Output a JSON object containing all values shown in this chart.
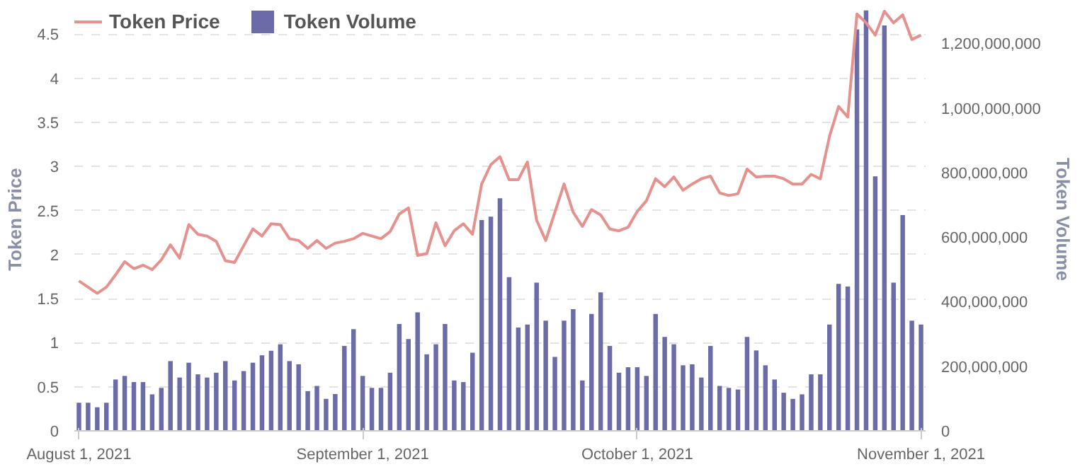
{
  "chart_data": {
    "type": "bar",
    "ylabel": "Token Price",
    "y2label": "Token Volume",
    "legend": "top left",
    "grid": "y",
    "xlim": [
      "2021-07-31T12:00",
      "2021-11-01T12:00"
    ],
    "xticks": [
      {
        "value": "2021-08-01",
        "label": "August 1, 2021"
      },
      {
        "value": "2021-09-01",
        "label": "September 1, 2021"
      },
      {
        "value": "2021-10-01",
        "label": "October 1, 2021"
      },
      {
        "value": "2021-11-01",
        "label": "November 1, 2021"
      }
    ],
    "ylim": [
      0,
      4.8
    ],
    "yticks": [
      0,
      0.5,
      1,
      1.5,
      2,
      2.5,
      3,
      3.5,
      4,
      4.5
    ],
    "y2lim": [
      0,
      1310000000
    ],
    "y2ticks": [
      {
        "value": 0,
        "label": "0"
      },
      {
        "value": 200000000,
        "label": "200,000,000"
      },
      {
        "value": 400000000,
        "label": "400,000,000"
      },
      {
        "value": 600000000,
        "label": "600,000,000"
      },
      {
        "value": 800000000,
        "label": "800,000,000"
      },
      {
        "value": 1000000000,
        "label": "1,000,000,000"
      },
      {
        "value": 1200000000,
        "label": "1,200,000,000"
      }
    ],
    "x": [
      "2021-08-01",
      "2021-08-02",
      "2021-08-03",
      "2021-08-04",
      "2021-08-05",
      "2021-08-06",
      "2021-08-07",
      "2021-08-08",
      "2021-08-09",
      "2021-08-10",
      "2021-08-11",
      "2021-08-12",
      "2021-08-13",
      "2021-08-14",
      "2021-08-15",
      "2021-08-16",
      "2021-08-17",
      "2021-08-18",
      "2021-08-19",
      "2021-08-20",
      "2021-08-21",
      "2021-08-22",
      "2021-08-23",
      "2021-08-24",
      "2021-08-25",
      "2021-08-26",
      "2021-08-27",
      "2021-08-28",
      "2021-08-29",
      "2021-08-30",
      "2021-08-31",
      "2021-09-01",
      "2021-09-02",
      "2021-09-03",
      "2021-09-04",
      "2021-09-05",
      "2021-09-06",
      "2021-09-07",
      "2021-09-08",
      "2021-09-09",
      "2021-09-10",
      "2021-09-11",
      "2021-09-12",
      "2021-09-13",
      "2021-09-14",
      "2021-09-15",
      "2021-09-16",
      "2021-09-17",
      "2021-09-18",
      "2021-09-19",
      "2021-09-20",
      "2021-09-21",
      "2021-09-22",
      "2021-09-23",
      "2021-09-24",
      "2021-09-25",
      "2021-09-26",
      "2021-09-27",
      "2021-09-28",
      "2021-09-29",
      "2021-09-30",
      "2021-10-01",
      "2021-10-02",
      "2021-10-03",
      "2021-10-04",
      "2021-10-05",
      "2021-10-06",
      "2021-10-07",
      "2021-10-08",
      "2021-10-09",
      "2021-10-10",
      "2021-10-11",
      "2021-10-12",
      "2021-10-13",
      "2021-10-14",
      "2021-10-15",
      "2021-10-16",
      "2021-10-17",
      "2021-10-18",
      "2021-10-19",
      "2021-10-20",
      "2021-10-21",
      "2021-10-22",
      "2021-10-23",
      "2021-10-24",
      "2021-10-25",
      "2021-10-26",
      "2021-10-27",
      "2021-10-28",
      "2021-10-29",
      "2021-10-30",
      "2021-10-31",
      "2021-11-01"
    ],
    "series": [
      {
        "name": "Token Price",
        "type": "line",
        "color": "#e5918e",
        "values": [
          1.7,
          1.63,
          1.56,
          1.63,
          1.77,
          1.92,
          1.84,
          1.88,
          1.83,
          1.94,
          2.11,
          1.96,
          2.34,
          2.23,
          2.21,
          2.15,
          1.93,
          1.91,
          2.1,
          2.29,
          2.21,
          2.35,
          2.34,
          2.18,
          2.16,
          2.07,
          2.16,
          2.07,
          2.13,
          2.15,
          2.18,
          2.24,
          2.21,
          2.18,
          2.26,
          2.46,
          2.53,
          1.99,
          2.01,
          2.36,
          2.1,
          2.27,
          2.35,
          2.23,
          2.8,
          3.02,
          3.11,
          2.85,
          2.85,
          3.05,
          2.39,
          2.16,
          2.48,
          2.8,
          2.48,
          2.32,
          2.51,
          2.45,
          2.29,
          2.27,
          2.31,
          2.49,
          2.61,
          2.86,
          2.77,
          2.88,
          2.73,
          2.8,
          2.86,
          2.89,
          2.7,
          2.67,
          2.69,
          2.97,
          2.88,
          2.89,
          2.89,
          2.86,
          2.8,
          2.8,
          2.91,
          2.86,
          3.34,
          3.68,
          3.56,
          4.73,
          4.63,
          4.49,
          4.76,
          4.63,
          4.72,
          4.44,
          4.49
        ]
      },
      {
        "name": "Token Volume",
        "axis": "y2",
        "color": "#6b6ba8",
        "values": [
          87000000,
          87000000,
          73000000,
          87000000,
          159000000,
          170000000,
          151000000,
          151000000,
          113000000,
          133000000,
          216000000,
          165000000,
          211000000,
          175000000,
          165000000,
          180000000,
          216000000,
          156000000,
          185000000,
          211000000,
          234000000,
          248000000,
          268000000,
          216000000,
          206000000,
          123000000,
          139000000,
          99000000,
          114000000,
          263000000,
          315000000,
          170000000,
          133000000,
          133000000,
          180000000,
          331000000,
          284000000,
          367000000,
          237000000,
          268000000,
          331000000,
          156000000,
          151000000,
          242000000,
          653000000,
          663000000,
          720000000,
          476000000,
          320000000,
          329000000,
          459000000,
          341000000,
          229000000,
          341000000,
          377000000,
          156000000,
          362000000,
          429000000,
          263000000,
          180000000,
          197000000,
          197000000,
          170000000,
          362000000,
          291000000,
          268000000,
          203000000,
          206000000,
          165000000,
          263000000,
          139000000,
          133000000,
          128000000,
          291000000,
          249000000,
          203000000,
          159000000,
          118000000,
          99000000,
          113000000,
          175000000,
          175000000,
          329000000,
          455000000,
          447000000,
          1243000000,
          1302000000,
          788000000,
          1255000000,
          459000000,
          668000000,
          341000000,
          329000000
        ]
      }
    ]
  }
}
